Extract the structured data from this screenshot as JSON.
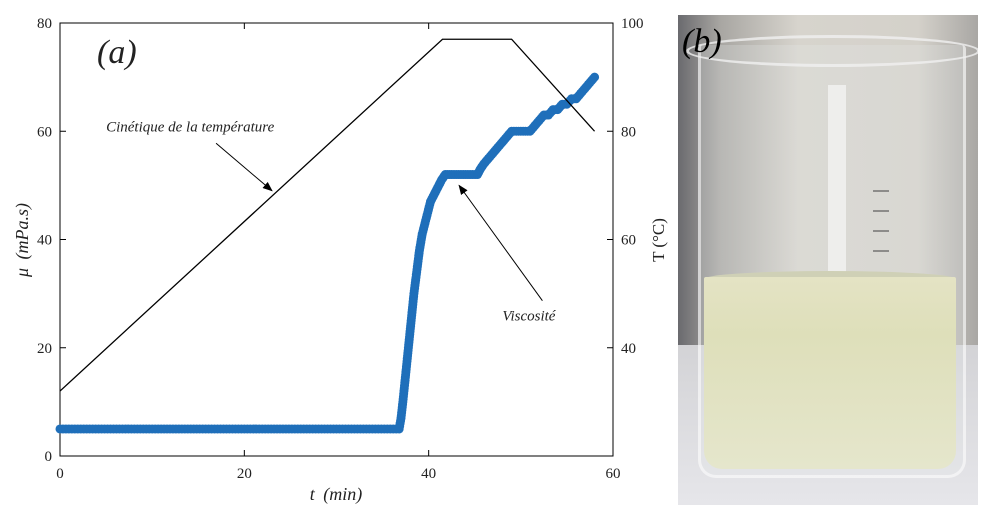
{
  "panel_a_label": "(a)",
  "panel_b_label": "(b)",
  "colors": {
    "viscosity": "#1f6fba",
    "temperature": "#000000"
  },
  "chart_data": {
    "type": "line",
    "x_axis": {
      "label_var": "t",
      "label_unit": "(min)",
      "range": [
        0,
        60
      ],
      "ticks": [
        0,
        20,
        40,
        60
      ]
    },
    "y_axis_left": {
      "label_var": "μ",
      "label_unit": "(mPa.s)",
      "range": [
        0,
        80
      ],
      "ticks": [
        0,
        20,
        40,
        60,
        80
      ]
    },
    "y_axis_right": {
      "label": "T (°C)",
      "range": [
        20,
        100
      ],
      "ticks": [
        40,
        60,
        80,
        100
      ]
    },
    "series": [
      {
        "name": "Viscosité",
        "axis": "left",
        "style": "thick-dots",
        "x": [
          0,
          10,
          20,
          30,
          36.8,
          37.0,
          37.2,
          37.5,
          37.8,
          38.1,
          38.4,
          38.7,
          39.0,
          39.3,
          39.6,
          39.9,
          40.2,
          40.5,
          40.8,
          41.1,
          41.4,
          41.8,
          42.5,
          43.5,
          44.5,
          45.3,
          45.6,
          46.0,
          46.5,
          47.0,
          47.5,
          48.0,
          48.5,
          49.0,
          49.5,
          50.0,
          51.0,
          51.5,
          52.0,
          52.5,
          53.0,
          53.5,
          54.0,
          54.5,
          55.0,
          55.5,
          56.0,
          56.5,
          57.0,
          57.5,
          58.0
        ],
        "y": [
          5,
          5,
          5,
          5,
          5,
          7,
          10,
          15,
          20,
          25,
          30,
          34,
          38,
          41,
          43,
          45,
          47,
          48,
          49,
          50,
          51,
          52,
          52,
          52,
          52,
          52,
          53,
          54,
          55,
          56,
          57,
          58,
          59,
          60,
          60,
          60,
          60,
          61,
          62,
          63,
          63,
          64,
          64,
          65,
          65,
          66,
          66,
          67,
          68,
          69,
          70
        ]
      },
      {
        "name": "Cinétique de la température",
        "axis": "right",
        "style": "line",
        "x": [
          0,
          41.5,
          49,
          58
        ],
        "y": [
          32,
          97,
          97,
          80
        ]
      }
    ],
    "annotations": [
      {
        "text": "Cinétique de la température",
        "text_at": [
          5,
          60
        ],
        "arrow_to": [
          23,
          49
        ]
      },
      {
        "text": "Viscosité",
        "text_at": [
          48,
          25
        ],
        "arrow_to": [
          43.3,
          50
        ]
      }
    ],
    "grid": false,
    "legend": "none"
  }
}
